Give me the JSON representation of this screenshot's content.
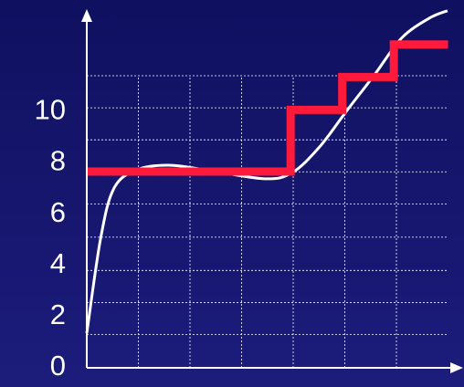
{
  "chart_data": {
    "type": "line",
    "xlim": [
      0,
      7.3
    ],
    "ylim": [
      0,
      14
    ],
    "yticks": [
      0,
      2,
      4,
      6,
      8,
      10
    ],
    "ygrid": [
      1.3,
      2.55,
      3.8,
      5.1,
      6.4,
      7.65,
      8.9,
      10.15,
      11.4
    ],
    "xgrid": [
      1,
      2,
      3,
      4,
      5,
      6
    ],
    "grid": true,
    "series": [
      {
        "color": "#ffffff",
        "step": false,
        "x": [
          0,
          0.27,
          0.53,
          0.97,
          1.59,
          2.39,
          3.45,
          3.98,
          4.51,
          5.04,
          5.58,
          6.1,
          6.64,
          6.99
        ],
        "values": [
          1.35,
          5.07,
          7.02,
          7.73,
          7.91,
          7.7,
          7.38,
          7.62,
          8.62,
          10.04,
          11.45,
          12.87,
          13.65,
          13.94
        ]
      },
      {
        "color": "#ff1a3c",
        "step": true,
        "x": [
          0,
          3.95,
          4.95,
          5.95,
          7
        ],
        "values": [
          7.66,
          10.07,
          11.35,
          12.62,
          12.62
        ]
      }
    ]
  }
}
